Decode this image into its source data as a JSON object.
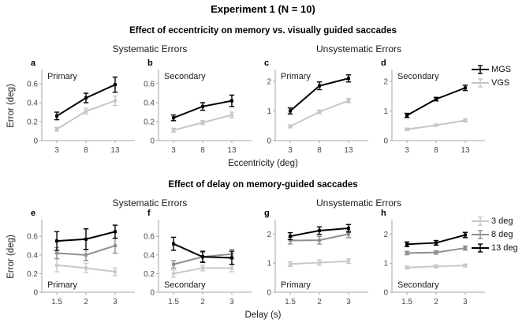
{
  "figure": {
    "title": "Experiment 1 (N = 10)",
    "row1": {
      "subtitle": "Effect of eccentricity on memory vs. visually guided saccades",
      "left_header": "Systematic Errors",
      "right_header": "Unsystematic Errors",
      "xlabel": "Eccentricity (deg)",
      "ylabel": "Error (deg)",
      "legend": [
        {
          "label": "MGS",
          "color": "#000000"
        },
        {
          "label": "VGS",
          "color": "#c6c6c6"
        }
      ]
    },
    "row2": {
      "subtitle": "Effect of delay on memory-guided saccades",
      "left_header": "Systematic Errors",
      "right_header": "Unsystematic Errors",
      "xlabel": "Delay (s)",
      "ylabel": "Error (deg)",
      "legend": [
        {
          "label": "3 deg",
          "color": "#c9c9c9"
        },
        {
          "label": "8 deg",
          "color": "#8f8f8f"
        },
        {
          "label": "13 deg",
          "color": "#000000"
        }
      ]
    }
  },
  "colors": {
    "axis": "#a6a6a6",
    "tick_text": "#4a4a4a",
    "panel_text": "#1a1a1a"
  },
  "chart_data": [
    {
      "id": "a",
      "row": 1,
      "slot": 0,
      "type": "line",
      "label": "Primary",
      "label_pos": "top",
      "x": [
        3,
        8,
        13
      ],
      "xticks": [
        "3",
        "8",
        "13"
      ],
      "yticks": [
        0,
        0.2,
        0.4,
        0.6
      ],
      "ytick_labels": [
        "0",
        "0.2",
        "0.4",
        "0.6"
      ],
      "ylim": [
        0,
        0.75
      ],
      "series": [
        {
          "name": "MGS",
          "color": "#000000",
          "values": [
            0.26,
            0.45,
            0.59
          ],
          "errors": [
            0.04,
            0.05,
            0.08
          ]
        },
        {
          "name": "VGS",
          "color": "#c6c6c6",
          "values": [
            0.12,
            0.31,
            0.42
          ],
          "errors": [
            0.02,
            0.03,
            0.05
          ]
        }
      ]
    },
    {
      "id": "b",
      "row": 1,
      "slot": 1,
      "type": "line",
      "label": "Secondary",
      "label_pos": "top",
      "x": [
        3,
        8,
        13
      ],
      "xticks": [
        "3",
        "8",
        "13"
      ],
      "yticks": [
        0,
        0.2,
        0.4,
        0.6
      ],
      "ytick_labels": [
        "0",
        "0.2",
        "0.4",
        "0.6"
      ],
      "ylim": [
        0,
        0.75
      ],
      "series": [
        {
          "name": "MGS",
          "color": "#000000",
          "values": [
            0.24,
            0.36,
            0.42
          ],
          "errors": [
            0.03,
            0.04,
            0.06
          ]
        },
        {
          "name": "VGS",
          "color": "#c6c6c6",
          "values": [
            0.11,
            0.19,
            0.27
          ],
          "errors": [
            0.02,
            0.02,
            0.03
          ]
        }
      ]
    },
    {
      "id": "c",
      "row": 1,
      "slot": 2,
      "type": "line",
      "label": "Primary",
      "label_pos": "top",
      "x": [
        3,
        8,
        13
      ],
      "xticks": [
        "3",
        "8",
        "13"
      ],
      "yticks": [
        0,
        1,
        2
      ],
      "ytick_labels": [
        "0",
        "1",
        "2"
      ],
      "ylim": [
        0,
        2.4
      ],
      "series": [
        {
          "name": "MGS",
          "color": "#000000",
          "values": [
            1.0,
            1.85,
            2.1
          ],
          "errors": [
            0.1,
            0.13,
            0.12
          ]
        },
        {
          "name": "VGS",
          "color": "#c6c6c6",
          "values": [
            0.48,
            0.97,
            1.35
          ],
          "errors": [
            0.05,
            0.06,
            0.07
          ]
        }
      ]
    },
    {
      "id": "d",
      "row": 1,
      "slot": 3,
      "type": "line",
      "label": "Secondary",
      "label_pos": "top",
      "x": [
        3,
        8,
        13
      ],
      "xticks": [
        "3",
        "8",
        "13"
      ],
      "yticks": [
        0,
        1,
        2
      ],
      "ytick_labels": [
        "0",
        "1",
        "2"
      ],
      "ylim": [
        0,
        2.4
      ],
      "series": [
        {
          "name": "MGS",
          "color": "#000000",
          "values": [
            0.85,
            1.4,
            1.78
          ],
          "errors": [
            0.07,
            0.06,
            0.09
          ]
        },
        {
          "name": "VGS",
          "color": "#c6c6c6",
          "values": [
            0.38,
            0.52,
            0.68
          ],
          "errors": [
            0.04,
            0.04,
            0.05
          ]
        }
      ]
    },
    {
      "id": "e",
      "row": 2,
      "slot": 0,
      "type": "line",
      "label": "Primary",
      "label_pos": "bottom",
      "x": [
        1.5,
        2,
        3
      ],
      "xticks": [
        "1.5",
        "2",
        "3"
      ],
      "yticks": [
        0,
        0.2,
        0.4,
        0.6
      ],
      "ytick_labels": [
        "0",
        "0.2",
        "0.4",
        "0.6"
      ],
      "ylim": [
        0,
        0.78
      ],
      "series": [
        {
          "name": "3 deg",
          "color": "#c9c9c9",
          "values": [
            0.29,
            0.26,
            0.22
          ],
          "errors": [
            0.07,
            0.05,
            0.04
          ]
        },
        {
          "name": "8 deg",
          "color": "#8f8f8f",
          "values": [
            0.42,
            0.4,
            0.5
          ],
          "errors": [
            0.06,
            0.06,
            0.08
          ]
        },
        {
          "name": "13 deg",
          "color": "#000000",
          "values": [
            0.55,
            0.57,
            0.65
          ],
          "errors": [
            0.1,
            0.11,
            0.07
          ]
        }
      ]
    },
    {
      "id": "f",
      "row": 2,
      "slot": 1,
      "type": "line",
      "label": "Secondary",
      "label_pos": "bottom",
      "x": [
        1.5,
        2,
        3
      ],
      "xticks": [
        "1.5",
        "2",
        "3"
      ],
      "yticks": [
        0,
        0.2,
        0.4,
        0.6
      ],
      "ytick_labels": [
        "0",
        "0.2",
        "0.4",
        "0.6"
      ],
      "ylim": [
        0,
        0.78
      ],
      "series": [
        {
          "name": "3 deg",
          "color": "#c9c9c9",
          "values": [
            0.2,
            0.26,
            0.26
          ],
          "errors": [
            0.04,
            0.03,
            0.04
          ]
        },
        {
          "name": "8 deg",
          "color": "#8f8f8f",
          "values": [
            0.3,
            0.38,
            0.41
          ],
          "errors": [
            0.04,
            0.05,
            0.05
          ]
        },
        {
          "name": "13 deg",
          "color": "#000000",
          "values": [
            0.52,
            0.38,
            0.37
          ],
          "errors": [
            0.07,
            0.06,
            0.07
          ]
        }
      ]
    },
    {
      "id": "g",
      "row": 2,
      "slot": 2,
      "type": "line",
      "label": "Primary",
      "label_pos": "bottom",
      "x": [
        1.5,
        2,
        3
      ],
      "xticks": [
        "1.5",
        "2",
        "3"
      ],
      "yticks": [
        0,
        1,
        2
      ],
      "ytick_labels": [
        "0",
        "1",
        "2"
      ],
      "ylim": [
        0,
        2.5
      ],
      "series": [
        {
          "name": "3 deg",
          "color": "#c9c9c9",
          "values": [
            0.97,
            1.02,
            1.07
          ],
          "errors": [
            0.08,
            0.09,
            0.08
          ]
        },
        {
          "name": "8 deg",
          "color": "#8f8f8f",
          "values": [
            1.78,
            1.79,
            2.0
          ],
          "errors": [
            0.12,
            0.13,
            0.12
          ]
        },
        {
          "name": "13 deg",
          "color": "#000000",
          "values": [
            1.93,
            2.12,
            2.2
          ],
          "errors": [
            0.12,
            0.13,
            0.13
          ]
        }
      ]
    },
    {
      "id": "h",
      "row": 2,
      "slot": 3,
      "type": "line",
      "label": "Secondary",
      "label_pos": "bottom",
      "x": [
        1.5,
        2,
        3
      ],
      "xticks": [
        "1.5",
        "2",
        "3"
      ],
      "yticks": [
        0,
        1,
        2
      ],
      "ytick_labels": [
        "0",
        "1",
        "2"
      ],
      "ylim": [
        0,
        2.5
      ],
      "series": [
        {
          "name": "3 deg",
          "color": "#c9c9c9",
          "values": [
            0.85,
            0.89,
            0.92
          ],
          "errors": [
            0.05,
            0.05,
            0.05
          ]
        },
        {
          "name": "8 deg",
          "color": "#8f8f8f",
          "values": [
            1.35,
            1.37,
            1.52
          ],
          "errors": [
            0.06,
            0.06,
            0.07
          ]
        },
        {
          "name": "13 deg",
          "color": "#000000",
          "values": [
            1.65,
            1.7,
            1.97
          ],
          "errors": [
            0.08,
            0.08,
            0.09
          ]
        }
      ]
    }
  ]
}
